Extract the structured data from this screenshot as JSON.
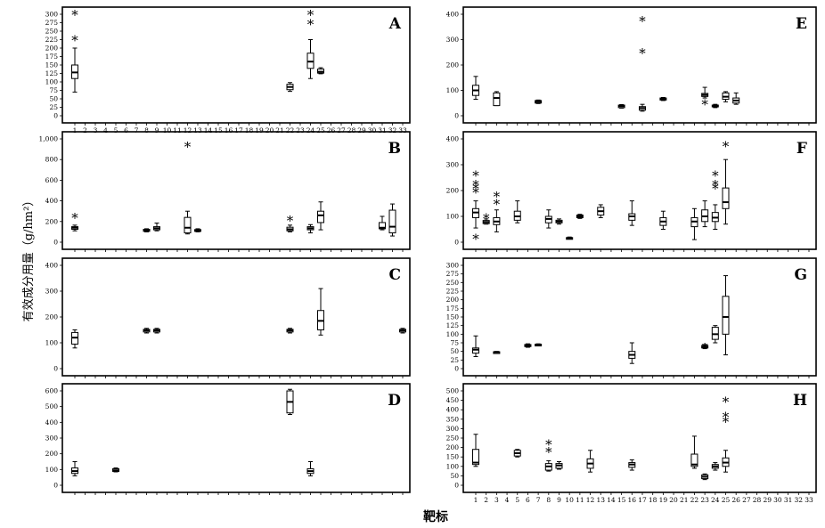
{
  "axis_labels": {
    "y": "有效成分用量（g/hm²）",
    "x": "靶标"
  },
  "chart_data": [
    {
      "type": "box",
      "panel": "A",
      "ylim": [
        0,
        300
      ],
      "yticks": [
        0,
        25,
        50,
        75,
        100,
        125,
        150,
        175,
        200,
        225,
        250,
        275,
        300
      ],
      "ytick_labels": [
        "0",
        "25",
        "50",
        "75",
        "100",
        "125",
        "150",
        "175",
        "200",
        "225",
        "250",
        "275",
        "300"
      ],
      "x_ticks": [
        "1",
        "2",
        "3",
        "4",
        "5",
        "6",
        "7",
        "8",
        "9",
        "10",
        "11",
        "12",
        "13",
        "14",
        "15",
        "16",
        "17",
        "18",
        "19",
        "20",
        "21",
        "22",
        "23",
        "24",
        "25",
        "26",
        "27",
        "28",
        "29",
        "30",
        "31",
        "32",
        "33"
      ],
      "boxes": [
        {
          "target": 1,
          "min": 70,
          "q1": 110,
          "median": 128,
          "q3": 150,
          "max": 200
        },
        {
          "target": 22,
          "min": 72,
          "q1": 77,
          "median": 85,
          "q3": 93,
          "max": 98
        },
        {
          "target": 24,
          "min": 110,
          "q1": 140,
          "median": 160,
          "q3": 185,
          "max": 225
        },
        {
          "target": 25,
          "min": 124,
          "q1": 126,
          "median": 130,
          "q3": 138,
          "max": 142
        }
      ],
      "outliers": [
        {
          "target": 1,
          "value": 300
        },
        {
          "target": 1,
          "value": 225
        },
        {
          "target": 24,
          "value": 300
        },
        {
          "target": 24,
          "value": 272
        }
      ]
    },
    {
      "type": "box",
      "panel": "B",
      "ylim": [
        0,
        1000
      ],
      "yticks": [
        0,
        200,
        400,
        600,
        800,
        1000
      ],
      "ytick_labels": [
        "0",
        "200",
        "400",
        "600",
        "800",
        "1,000"
      ],
      "x_ticks": [],
      "boxes": [
        {
          "target": 1,
          "min": 110,
          "q1": 125,
          "median": 140,
          "q3": 150,
          "max": 165
        },
        {
          "target": 8,
          "min": 100,
          "q1": 105,
          "median": 115,
          "q3": 125,
          "max": 130
        },
        {
          "target": 9,
          "min": 110,
          "q1": 120,
          "median": 135,
          "q3": 150,
          "max": 185
        },
        {
          "target": 12,
          "min": 80,
          "q1": 90,
          "median": 140,
          "q3": 240,
          "max": 300
        },
        {
          "target": 13,
          "min": 100,
          "q1": 105,
          "median": 115,
          "q3": 122,
          "max": 130
        },
        {
          "target": 22,
          "min": 100,
          "q1": 110,
          "median": 125,
          "q3": 145,
          "max": 165
        },
        {
          "target": 24,
          "min": 90,
          "q1": 120,
          "median": 135,
          "q3": 150,
          "max": 170
        },
        {
          "target": 25,
          "min": 120,
          "q1": 190,
          "median": 260,
          "q3": 300,
          "max": 390
        },
        {
          "target": 31,
          "min": 120,
          "q1": 130,
          "median": 140,
          "q3": 190,
          "max": 250
        },
        {
          "target": 32,
          "min": 60,
          "q1": 90,
          "median": 150,
          "q3": 310,
          "max": 370
        }
      ],
      "outliers": [
        {
          "target": 1,
          "value": 240
        },
        {
          "target": 12,
          "value": 930
        },
        {
          "target": 22,
          "value": 215
        }
      ]
    },
    {
      "type": "box",
      "panel": "C",
      "ylim": [
        0,
        400
      ],
      "yticks": [
        0,
        100,
        200,
        300,
        400
      ],
      "ytick_labels": [
        "0",
        "100",
        "200",
        "300",
        "400"
      ],
      "x_ticks": [],
      "boxes": [
        {
          "target": 1,
          "min": 80,
          "q1": 95,
          "median": 120,
          "q3": 140,
          "max": 150
        },
        {
          "target": 8,
          "min": 138,
          "q1": 142,
          "median": 148,
          "q3": 152,
          "max": 156
        },
        {
          "target": 9,
          "min": 138,
          "q1": 142,
          "median": 148,
          "q3": 152,
          "max": 156
        },
        {
          "target": 22,
          "min": 138,
          "q1": 142,
          "median": 148,
          "q3": 152,
          "max": 156
        },
        {
          "target": 25,
          "min": 130,
          "q1": 150,
          "median": 185,
          "q3": 225,
          "max": 310
        },
        {
          "target": 33,
          "min": 138,
          "q1": 142,
          "median": 148,
          "q3": 152,
          "max": 156
        }
      ],
      "outliers": []
    },
    {
      "type": "box",
      "panel": "D",
      "ylim": [
        0,
        600
      ],
      "yticks": [
        0,
        100,
        200,
        300,
        400,
        500,
        600
      ],
      "ytick_labels": [
        "0",
        "100",
        "200",
        "300",
        "400",
        "500",
        "600"
      ],
      "x_ticks": [],
      "boxes": [
        {
          "target": 1,
          "min": 60,
          "q1": 75,
          "median": 90,
          "q3": 110,
          "max": 150
        },
        {
          "target": 5,
          "min": 85,
          "q1": 88,
          "median": 95,
          "q3": 105,
          "max": 110
        },
        {
          "target": 22,
          "min": 450,
          "q1": 460,
          "median": 530,
          "q3": 600,
          "max": 610
        },
        {
          "target": 24,
          "min": 60,
          "q1": 75,
          "median": 90,
          "q3": 105,
          "max": 150
        }
      ],
      "outliers": []
    },
    {
      "type": "box",
      "panel": "E",
      "ylim": [
        0,
        400
      ],
      "yticks": [
        0,
        100,
        200,
        300,
        400
      ],
      "ytick_labels": [
        "0",
        "100",
        "200",
        "300",
        "400"
      ],
      "x_ticks": [],
      "boxes": [
        {
          "target": 1,
          "min": 65,
          "q1": 80,
          "median": 100,
          "q3": 120,
          "max": 155
        },
        {
          "target": 3,
          "min": 40,
          "q1": 40,
          "median": 70,
          "q3": 90,
          "max": 95
        },
        {
          "target": 7,
          "min": 48,
          "q1": 50,
          "median": 55,
          "q3": 60,
          "max": 62
        },
        {
          "target": 15,
          "min": 30,
          "q1": 32,
          "median": 38,
          "q3": 42,
          "max": 44
        },
        {
          "target": 17,
          "min": 18,
          "q1": 22,
          "median": 30,
          "q3": 36,
          "max": 45
        },
        {
          "target": 19,
          "min": 60,
          "q1": 62,
          "median": 65,
          "q3": 70,
          "max": 72
        },
        {
          "target": 23,
          "min": 70,
          "q1": 76,
          "median": 82,
          "q3": 88,
          "max": 112
        },
        {
          "target": 24,
          "min": 32,
          "q1": 35,
          "median": 38,
          "q3": 42,
          "max": 45
        },
        {
          "target": 25,
          "min": 55,
          "q1": 65,
          "median": 75,
          "q3": 90,
          "max": 95
        },
        {
          "target": 26,
          "min": 45,
          "q1": 50,
          "median": 60,
          "q3": 70,
          "max": 90
        }
      ],
      "outliers": [
        {
          "target": 17,
          "value": 375
        },
        {
          "target": 17,
          "value": 250
        },
        {
          "target": 23,
          "value": 48
        }
      ]
    },
    {
      "type": "box",
      "panel": "F",
      "ylim": [
        0,
        400
      ],
      "yticks": [
        0,
        100,
        200,
        300,
        400
      ],
      "ytick_labels": [
        "0",
        "100",
        "200",
        "300",
        "400"
      ],
      "x_ticks": [],
      "boxes": [
        {
          "target": 1,
          "min": 55,
          "q1": 95,
          "median": 115,
          "q3": 130,
          "max": 160
        },
        {
          "target": 2,
          "min": 70,
          "q1": 72,
          "median": 78,
          "q3": 84,
          "max": 90
        },
        {
          "target": 3,
          "min": 40,
          "q1": 68,
          "median": 80,
          "q3": 95,
          "max": 125
        },
        {
          "target": 5,
          "min": 75,
          "q1": 85,
          "median": 100,
          "q3": 120,
          "max": 160
        },
        {
          "target": 8,
          "min": 55,
          "q1": 75,
          "median": 90,
          "q3": 100,
          "max": 125
        },
        {
          "target": 9,
          "min": 70,
          "q1": 75,
          "median": 80,
          "q3": 85,
          "max": 90
        },
        {
          "target": 10,
          "min": 12,
          "q1": 13,
          "median": 15,
          "q3": 18,
          "max": 20
        },
        {
          "target": 11,
          "min": 92,
          "q1": 95,
          "median": 100,
          "q3": 105,
          "max": 108
        },
        {
          "target": 13,
          "min": 95,
          "q1": 105,
          "median": 120,
          "q3": 135,
          "max": 145
        },
        {
          "target": 16,
          "min": 65,
          "q1": 85,
          "median": 100,
          "q3": 110,
          "max": 160
        },
        {
          "target": 19,
          "min": 50,
          "q1": 65,
          "median": 80,
          "q3": 95,
          "max": 120
        },
        {
          "target": 22,
          "min": 10,
          "q1": 60,
          "median": 80,
          "q3": 95,
          "max": 130
        },
        {
          "target": 23,
          "min": 60,
          "q1": 80,
          "median": 100,
          "q3": 125,
          "max": 160
        },
        {
          "target": 24,
          "min": 50,
          "q1": 80,
          "median": 95,
          "q3": 115,
          "max": 145
        },
        {
          "target": 25,
          "min": 70,
          "q1": 130,
          "median": 155,
          "q3": 210,
          "max": 320
        }
      ],
      "outliers": [
        {
          "target": 1,
          "value": 260
        },
        {
          "target": 1,
          "value": 225
        },
        {
          "target": 1,
          "value": 210
        },
        {
          "target": 1,
          "value": 195
        },
        {
          "target": 1,
          "value": 15
        },
        {
          "target": 2,
          "value": 95
        },
        {
          "target": 3,
          "value": 180
        },
        {
          "target": 3,
          "value": 150
        },
        {
          "target": 24,
          "value": 260
        },
        {
          "target": 24,
          "value": 225
        },
        {
          "target": 24,
          "value": 210
        },
        {
          "target": 25,
          "value": 375
        }
      ]
    },
    {
      "type": "box",
      "panel": "G",
      "ylim": [
        0,
        300
      ],
      "yticks": [
        0,
        25,
        50,
        75,
        100,
        125,
        150,
        175,
        200,
        225,
        250,
        275,
        300
      ],
      "ytick_labels": [
        "0",
        "25",
        "50",
        "75",
        "100",
        "125",
        "150",
        "175",
        "200",
        "225",
        "250",
        "275",
        "300"
      ],
      "x_ticks": [],
      "boxes": [
        {
          "target": 1,
          "min": 35,
          "q1": 45,
          "median": 55,
          "q3": 60,
          "max": 95
        },
        {
          "target": 3,
          "min": 46,
          "q1": 47,
          "median": 48,
          "q3": 49,
          "max": 50
        },
        {
          "target": 6,
          "min": 62,
          "q1": 64,
          "median": 67,
          "q3": 70,
          "max": 72
        },
        {
          "target": 7,
          "min": 66,
          "q1": 67,
          "median": 69,
          "q3": 71,
          "max": 72
        },
        {
          "target": 16,
          "min": 15,
          "q1": 30,
          "median": 40,
          "q3": 50,
          "max": 75
        },
        {
          "target": 23,
          "min": 58,
          "q1": 60,
          "median": 63,
          "q3": 67,
          "max": 70
        },
        {
          "target": 24,
          "min": 75,
          "q1": 85,
          "median": 100,
          "q3": 120,
          "max": 125
        },
        {
          "target": 25,
          "min": 40,
          "q1": 100,
          "median": 150,
          "q3": 210,
          "max": 270
        }
      ],
      "outliers": [
        {
          "target": 23,
          "value": 62
        }
      ]
    },
    {
      "type": "box",
      "panel": "H",
      "ylim": [
        0,
        500
      ],
      "yticks": [
        0,
        50,
        100,
        150,
        200,
        250,
        300,
        350,
        400,
        450,
        500
      ],
      "ytick_labels": [
        "0",
        "50",
        "100",
        "150",
        "200",
        "250",
        "300",
        "350",
        "400",
        "450",
        "500"
      ],
      "x_ticks": [
        "1",
        "2",
        "3",
        "4",
        "5",
        "6",
        "7",
        "8",
        "9",
        "10",
        "11",
        "12",
        "13",
        "14",
        "15",
        "16",
        "17",
        "18",
        "19",
        "20",
        "21",
        "22",
        "23",
        "24",
        "25",
        "26",
        "27",
        "28",
        "29",
        "30",
        "31",
        "32",
        "33"
      ],
      "boxes": [
        {
          "target": 1,
          "min": 100,
          "q1": 110,
          "median": 120,
          "q3": 190,
          "max": 270
        },
        {
          "target": 5,
          "min": 150,
          "q1": 155,
          "median": 170,
          "q3": 185,
          "max": 190
        },
        {
          "target": 8,
          "min": 75,
          "q1": 80,
          "median": 100,
          "q3": 115,
          "max": 130
        },
        {
          "target": 9,
          "min": 85,
          "q1": 90,
          "median": 105,
          "q3": 115,
          "max": 125
        },
        {
          "target": 12,
          "min": 70,
          "q1": 90,
          "median": 115,
          "q3": 140,
          "max": 185
        },
        {
          "target": 16,
          "min": 80,
          "q1": 95,
          "median": 110,
          "q3": 120,
          "max": 135
        },
        {
          "target": 22,
          "min": 90,
          "q1": 100,
          "median": 110,
          "q3": 165,
          "max": 260
        },
        {
          "target": 23,
          "min": 30,
          "q1": 35,
          "median": 45,
          "q3": 55,
          "max": 60
        },
        {
          "target": 24,
          "min": 80,
          "q1": 90,
          "median": 100,
          "q3": 110,
          "max": 120
        },
        {
          "target": 25,
          "min": 70,
          "q1": 100,
          "median": 120,
          "q3": 145,
          "max": 185
        }
      ],
      "outliers": [
        {
          "target": 8,
          "value": 220
        },
        {
          "target": 8,
          "value": 180
        },
        {
          "target": 25,
          "value": 445
        },
        {
          "target": 25,
          "value": 365
        },
        {
          "target": 25,
          "value": 340
        }
      ]
    }
  ]
}
